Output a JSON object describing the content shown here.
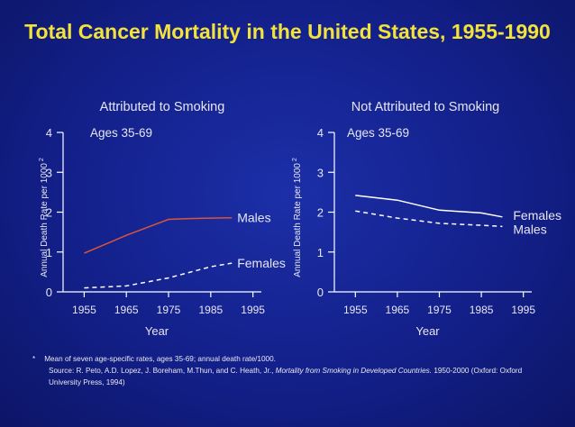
{
  "title": "Total Cancer Mortality in the United States, 1955-1990",
  "footnote": {
    "marker": "*",
    "line1": "Mean of seven age-specific rates, ages 35-69; annual death rate/1000.",
    "source_prefix": "Source: R. Peto, A.D. Lopez, J. Boreham, M.Thun, and C. Heath, Jr.,",
    "source_title": "Mortality from Smoking in Developed Countries.",
    "source_suffix": "1950-2000 (Oxford: Oxford University Press, 1994)"
  },
  "colors": {
    "background": "#13208a",
    "title": "#f2e23a",
    "axis": "#ffffff",
    "males_smoking": "#d9553a",
    "series_line": "#ffffff"
  },
  "chart_data": [
    {
      "type": "line",
      "title": "Attributed to Smoking",
      "subtitle": "Ages 35-69",
      "xlabel": "Year",
      "ylabel": "Annual Death Rate per 1000",
      "ylabel_superscript": "2",
      "xlim": [
        1950,
        1997
      ],
      "ylim": [
        0,
        4
      ],
      "xticks": [
        1955,
        1965,
        1975,
        1985,
        1995
      ],
      "yticks": [
        0,
        1,
        2,
        3,
        4
      ],
      "grid": false,
      "series": [
        {
          "name": "Males",
          "style": "solid",
          "color": "#d9553a",
          "x": [
            1955,
            1965,
            1975,
            1980,
            1985,
            1990
          ],
          "y": [
            0.97,
            1.42,
            1.82,
            1.84,
            1.85,
            1.86
          ]
        },
        {
          "name": "Females",
          "style": "dashed",
          "color": "#ffffff",
          "x": [
            1955,
            1965,
            1975,
            1985,
            1990
          ],
          "y": [
            0.1,
            0.15,
            0.35,
            0.63,
            0.72
          ]
        }
      ]
    },
    {
      "type": "line",
      "title": "Not Attributed to Smoking",
      "subtitle": "Ages 35-69",
      "xlabel": "Year",
      "ylabel": "Annual Death Rate per 1000",
      "ylabel_superscript": "2",
      "xlim": [
        1950,
        1997
      ],
      "ylim": [
        0,
        4
      ],
      "xticks": [
        1955,
        1965,
        1975,
        1985,
        1995
      ],
      "yticks": [
        0,
        1,
        2,
        3,
        4
      ],
      "grid": false,
      "series": [
        {
          "name": "Females",
          "style": "solid",
          "color": "#ffffff",
          "x": [
            1955,
            1965,
            1975,
            1985,
            1990
          ],
          "y": [
            2.42,
            2.3,
            2.05,
            1.98,
            1.88
          ]
        },
        {
          "name": "Males",
          "style": "dashed",
          "color": "#ffffff",
          "x": [
            1955,
            1965,
            1975,
            1985,
            1990
          ],
          "y": [
            2.03,
            1.85,
            1.72,
            1.67,
            1.64
          ]
        }
      ]
    }
  ]
}
